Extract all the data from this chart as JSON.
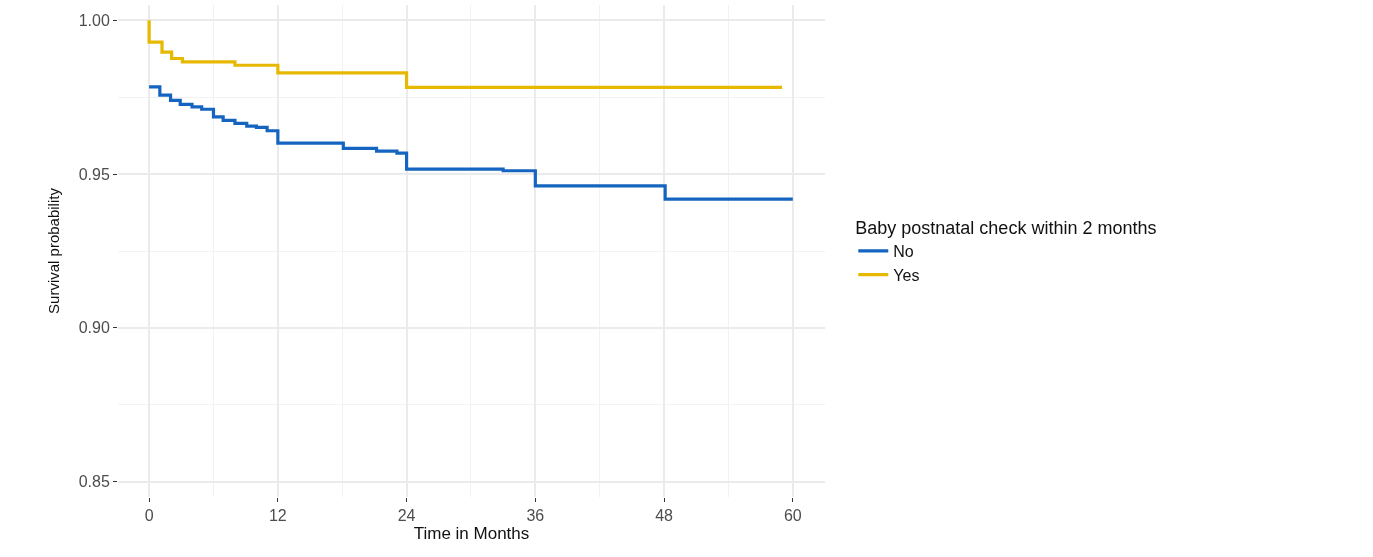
{
  "chart_data": {
    "type": "step",
    "xlabel": "Time in Months",
    "ylabel": "Survival probability",
    "legend_title": "Baby postnatal check within 2 months",
    "series": [
      {
        "name": "No",
        "color": "#1565c0",
        "x": [
          0,
          1.0,
          2.0,
          2.9,
          4.0,
          4.9,
          6.0,
          6.9,
          8.0,
          9.1,
          10.0,
          11.0,
          12.0,
          18.1,
          21.2,
          23.1,
          24.0,
          33.0,
          36.0,
          48.1,
          60.0
        ],
        "values": [
          0.9784,
          0.9757,
          0.974,
          0.9727,
          0.9719,
          0.9711,
          0.9686,
          0.9675,
          0.9665,
          0.9656,
          0.9652,
          0.9641,
          0.9601,
          0.9584,
          0.9575,
          0.9568,
          0.9516,
          0.9511,
          0.9462,
          0.9419,
          0.9419
        ]
      },
      {
        "name": "Yes",
        "color": "#e7b800",
        "x": [
          0,
          0,
          1.2,
          2.1,
          3.1,
          8.0,
          12.0,
          24.0,
          59.0
        ],
        "values": [
          1.0,
          0.9929,
          0.9897,
          0.9876,
          0.9865,
          0.9854,
          0.9829,
          0.9782,
          0.9782
        ]
      }
    ],
    "xlim": [
      -2.9,
      63
    ],
    "xticks": [
      0,
      12,
      24,
      36,
      48,
      60
    ],
    "ylim": [
      0.845,
      1.005
    ],
    "yticks": [
      {
        "value": 0.85,
        "label": "0.85"
      },
      {
        "value": 0.9,
        "label": "0.90"
      },
      {
        "value": 0.95,
        "label": "0.95"
      },
      {
        "value": 1.0,
        "label": "1.00"
      }
    ],
    "grid": true,
    "legend": "right",
    "line_style": "solid",
    "marker": "none"
  }
}
